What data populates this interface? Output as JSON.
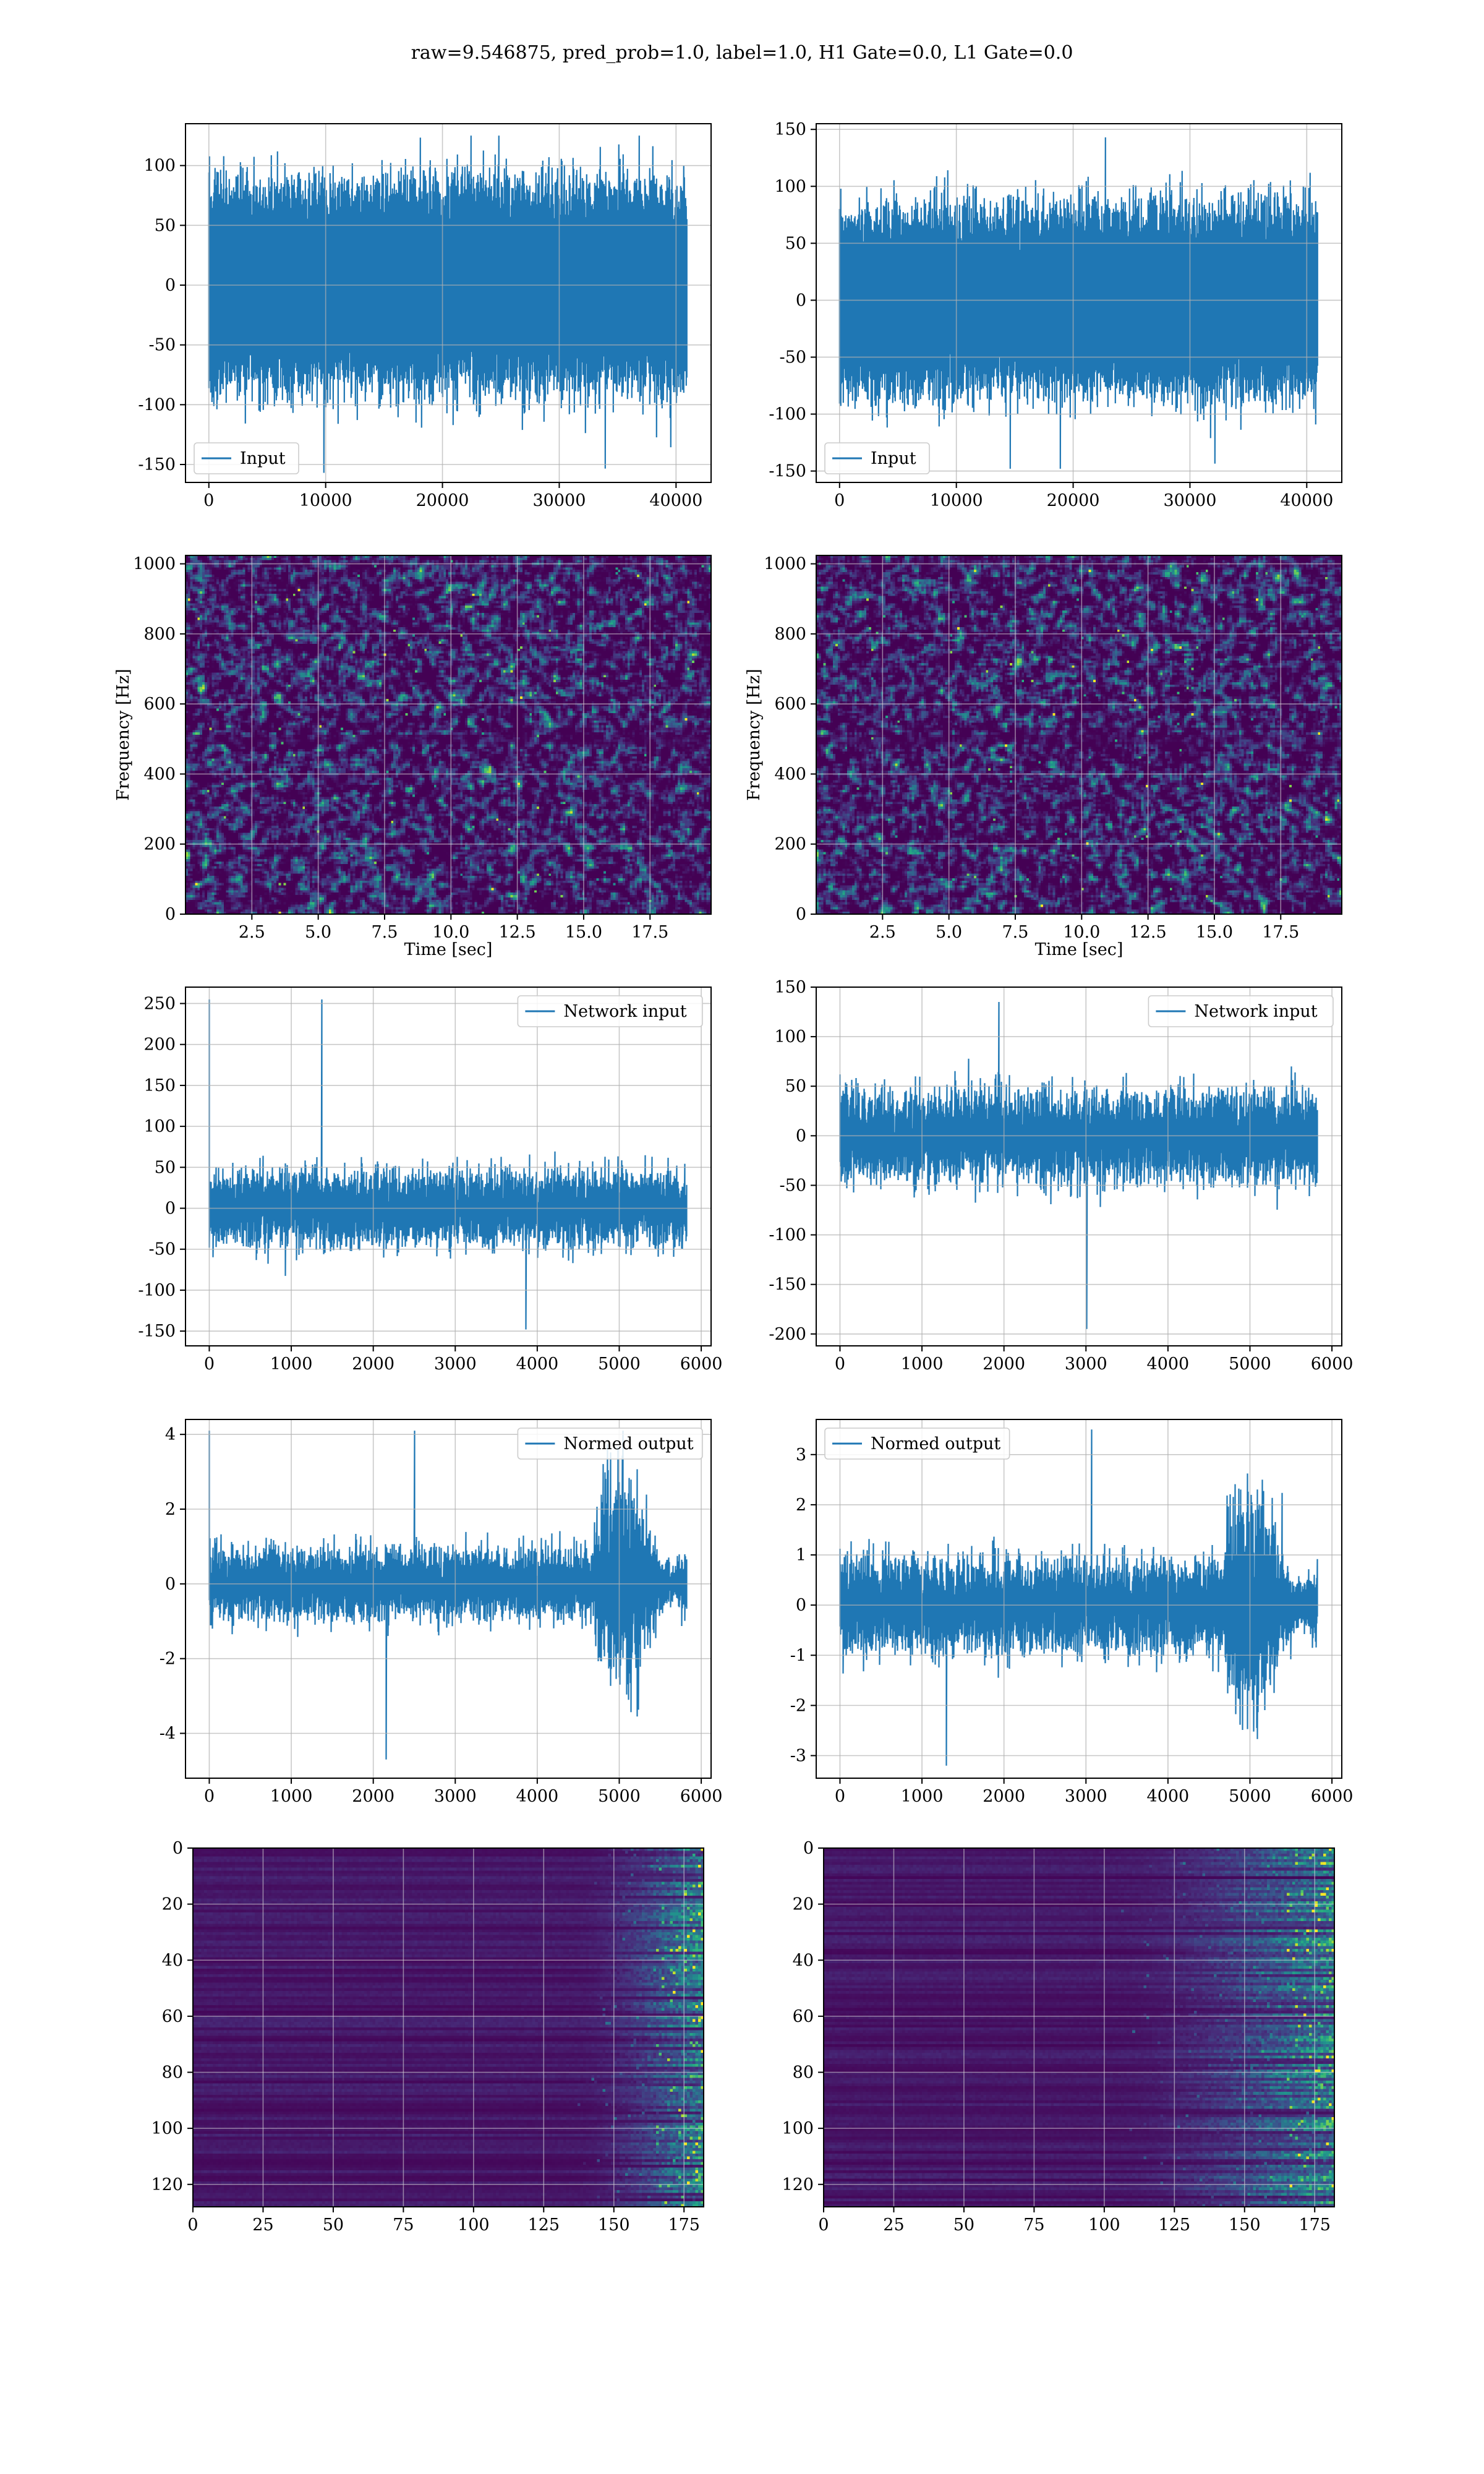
{
  "figure": {
    "suptitle": "raw=9.546875, pred_prob=1.0, label=1.0, H1 Gate=0.0, L1 Gate=0.0",
    "line_color": "#1f77b4",
    "grid_color": "#b0b0b0"
  },
  "chart_data": [
    {
      "type": "line",
      "panel": "row1-left",
      "kind": "noise",
      "n_points": 41000,
      "amplitude": 35,
      "spike_max": 125,
      "spike_min": -157,
      "xlim": [
        -2000,
        43000
      ],
      "ylim": [
        -165,
        135
      ],
      "xticks": [
        0,
        10000,
        20000,
        30000,
        40000
      ],
      "yticks": [
        -150,
        -100,
        -50,
        0,
        50,
        100
      ],
      "series": [
        {
          "name": "Input"
        }
      ],
      "legend": "lower-left",
      "grid": true,
      "xlabel": "",
      "ylabel": ""
    },
    {
      "type": "line",
      "panel": "row1-right",
      "kind": "noise",
      "n_points": 41000,
      "amplitude": 33,
      "spike_max": 143,
      "spike_min": -148,
      "xlim": [
        -2000,
        43000
      ],
      "ylim": [
        -160,
        155
      ],
      "xticks": [
        0,
        10000,
        20000,
        30000,
        40000
      ],
      "yticks": [
        -150,
        -100,
        -50,
        0,
        50,
        100,
        150
      ],
      "series": [
        {
          "name": "Input"
        }
      ],
      "legend": "lower-left",
      "grid": true,
      "xlabel": "",
      "ylabel": ""
    },
    {
      "type": "heatmap",
      "panel": "row2-left",
      "kind": "spectrogram",
      "xlim": [
        0,
        19.8
      ],
      "ylim": [
        0,
        1024
      ],
      "xticks": [
        2.5,
        5.0,
        7.5,
        10.0,
        12.5,
        15.0,
        17.5
      ],
      "yticks": [
        0,
        200,
        400,
        600,
        800,
        1000
      ],
      "xlabel": "Time [sec]",
      "ylabel": "Frequency [Hz]",
      "grid": true,
      "colormap": "viridis"
    },
    {
      "type": "heatmap",
      "panel": "row2-right",
      "kind": "spectrogram",
      "xlim": [
        0,
        19.8
      ],
      "ylim": [
        0,
        1024
      ],
      "xticks": [
        2.5,
        5.0,
        7.5,
        10.0,
        12.5,
        15.0,
        17.5
      ],
      "yticks": [
        0,
        200,
        400,
        600,
        800,
        1000
      ],
      "xlabel": "Time [sec]",
      "ylabel": "Frequency [Hz]",
      "grid": true,
      "colormap": "viridis"
    },
    {
      "type": "line",
      "panel": "row3-left",
      "kind": "noise",
      "n_points": 5830,
      "amplitude": 22,
      "spike_max": 255,
      "spike_min": -148,
      "first_point": 255,
      "xlim": [
        -290,
        6120
      ],
      "ylim": [
        -168,
        270
      ],
      "xticks": [
        0,
        1000,
        2000,
        3000,
        4000,
        5000,
        6000
      ],
      "yticks": [
        -150,
        -100,
        -50,
        0,
        50,
        100,
        150,
        200,
        250
      ],
      "series": [
        {
          "name": "Network input"
        }
      ],
      "legend": "upper-right",
      "grid": true,
      "xlabel": "",
      "ylabel": ""
    },
    {
      "type": "line",
      "panel": "row3-right",
      "kind": "noise",
      "n_points": 5830,
      "amplitude": 22,
      "spike_max": 135,
      "spike_min": -195,
      "xlim": [
        -290,
        6120
      ],
      "ylim": [
        -212,
        150
      ],
      "xticks": [
        0,
        1000,
        2000,
        3000,
        4000,
        5000,
        6000
      ],
      "yticks": [
        -200,
        -150,
        -100,
        -50,
        0,
        50,
        100,
        150
      ],
      "series": [
        {
          "name": "Network input"
        }
      ],
      "legend": "upper-right",
      "grid": true,
      "xlabel": "",
      "ylabel": ""
    },
    {
      "type": "line",
      "panel": "row4-left",
      "kind": "noise",
      "n_points": 5830,
      "amplitude": 0.45,
      "spike_max": 4.1,
      "spike_min": -4.7,
      "first_point": 4.1,
      "burst_start": 4700,
      "burst_gain": 3.0,
      "xlim": [
        -290,
        6120
      ],
      "ylim": [
        -5.2,
        4.4
      ],
      "xticks": [
        0,
        1000,
        2000,
        3000,
        4000,
        5000,
        6000
      ],
      "yticks": [
        -4,
        -2,
        0,
        2,
        4
      ],
      "series": [
        {
          "name": "Normed output"
        }
      ],
      "legend": "upper-right",
      "grid": true,
      "xlabel": "",
      "ylabel": ""
    },
    {
      "type": "line",
      "panel": "row4-right",
      "kind": "noise",
      "n_points": 5830,
      "amplitude": 0.45,
      "spike_max": 3.5,
      "spike_min": -3.2,
      "burst_start": 4700,
      "burst_gain": 2.5,
      "xlim": [
        -290,
        6120
      ],
      "ylim": [
        -3.45,
        3.7
      ],
      "xticks": [
        0,
        1000,
        2000,
        3000,
        4000,
        5000,
        6000
      ],
      "yticks": [
        -3,
        -2,
        -1,
        0,
        1,
        2,
        3
      ],
      "series": [
        {
          "name": "Normed output"
        }
      ],
      "legend": "upper-left",
      "grid": true,
      "xlabel": "",
      "ylabel": ""
    },
    {
      "type": "heatmap",
      "panel": "row5-left",
      "kind": "activations",
      "rows": 128,
      "cols": 182,
      "onset_col": 135,
      "xlim": [
        0,
        182
      ],
      "ylim": [
        128,
        0
      ],
      "xticks": [
        0,
        25,
        50,
        75,
        100,
        125,
        150,
        175
      ],
      "yticks": [
        0,
        20,
        40,
        60,
        80,
        100,
        120
      ],
      "grid": true,
      "colormap": "viridis",
      "xlabel": "",
      "ylabel": ""
    },
    {
      "type": "heatmap",
      "panel": "row5-right",
      "kind": "activations",
      "rows": 128,
      "cols": 182,
      "onset_col": 100,
      "xlim": [
        0,
        182
      ],
      "ylim": [
        128,
        0
      ],
      "xticks": [
        0,
        25,
        50,
        75,
        100,
        125,
        150,
        175
      ],
      "yticks": [
        0,
        20,
        40,
        60,
        80,
        100,
        120
      ],
      "grid": true,
      "colormap": "viridis",
      "xlabel": "",
      "ylabel": ""
    }
  ]
}
